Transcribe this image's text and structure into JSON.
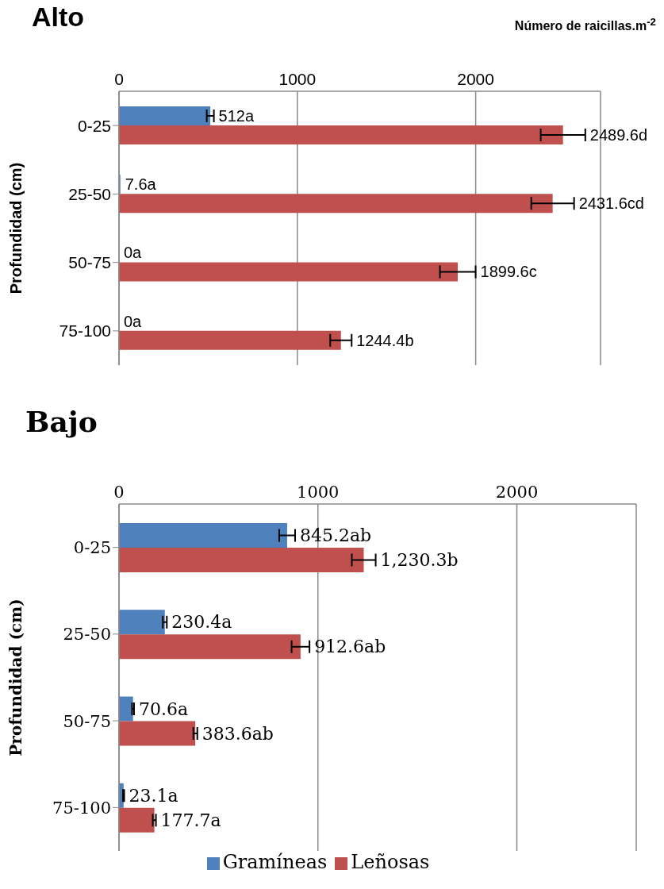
{
  "chart_data": [
    {
      "type": "bar",
      "orientation": "horizontal",
      "title": "Alto",
      "xlabel": "Número de raicillas.m$^{-2}$",
      "ylabel": "Profundidad (cm)",
      "categories": [
        "0-25",
        "25-50",
        "50-75",
        "75-100"
      ],
      "xlim": [
        0,
        2700
      ],
      "xticks": [
        0,
        1000,
        2000
      ],
      "grid": "x",
      "legend": false,
      "series": [
        {
          "color": "#4f81bd",
          "values": [
            512,
            7.6,
            0,
            0
          ],
          "errors": [
            20,
            null,
            null,
            null
          ],
          "value_labels": [
            "512a",
            "7.6a",
            "0a",
            "0a"
          ]
        },
        {
          "color": "#c0504d",
          "values": [
            2489.6,
            2431.6,
            1899.6,
            1244.4
          ],
          "errors": [
            125,
            120,
            100,
            60
          ],
          "value_labels": [
            "2489.6d",
            "2431.6cd",
            "1899.6c",
            "1244.4b"
          ]
        }
      ]
    },
    {
      "type": "bar",
      "orientation": "horizontal",
      "title": "Bajo",
      "ylabel": "Profundidad (cm)",
      "categories": [
        "0-25",
        "25-50",
        "50-75",
        "75-100"
      ],
      "xlim": [
        0,
        2600
      ],
      "xticks": [
        0,
        1000,
        2000
      ],
      "grid": "x",
      "legend": "bottom",
      "series": [
        {
          "name": "Gramíneas",
          "color": "#4f81bd",
          "values": [
            845.2,
            230.4,
            70.6,
            23.1
          ],
          "errors": [
            40,
            10,
            5,
            3
          ],
          "value_labels": [
            "845.2ab",
            "230.4a",
            "70.6a",
            "23.1a"
          ]
        },
        {
          "name": "Leñosas",
          "color": "#c0504d",
          "values": [
            1230.3,
            912.6,
            383.6,
            177.7
          ],
          "errors": [
            60,
            45,
            10,
            8
          ],
          "value_labels": [
            "1,230.3b",
            "912.6ab",
            "383.6ab",
            "177.7a"
          ]
        }
      ]
    }
  ]
}
